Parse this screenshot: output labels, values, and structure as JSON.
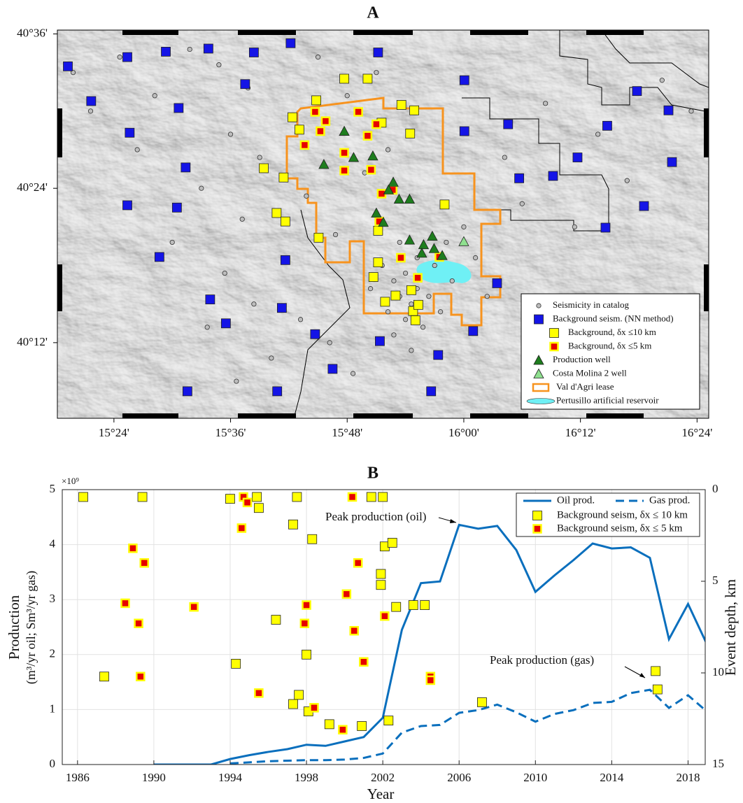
{
  "chart_data": [
    {
      "type": "map",
      "title": "A",
      "xlim": [
        15.303,
        16.42
      ],
      "ylim": [
        40.102,
        40.605
      ],
      "xticks": [
        {
          "value": 15.4,
          "label": "15°24'"
        },
        {
          "value": 15.6,
          "label": "15°36'"
        },
        {
          "value": 15.8,
          "label": "15°48'"
        },
        {
          "value": 16.0,
          "label": "16°00'"
        },
        {
          "value": 16.2,
          "label": "16°12'"
        },
        {
          "value": 16.4,
          "label": "16°24'"
        }
      ],
      "yticks": [
        {
          "value": 40.2,
          "label": "40°12'"
        },
        {
          "value": 40.4,
          "label": "40°24'"
        },
        {
          "value": 40.6,
          "label": "40°36'"
        }
      ],
      "legend": "lower right",
      "series": [
        {
          "name": "Seismicity in catalog",
          "color": "#bdbdbd",
          "marker": "circle",
          "x": [
            15.33,
            15.36,
            15.41,
            15.44,
            15.47,
            15.5,
            15.53,
            15.55,
            15.56,
            15.58,
            15.59,
            15.6,
            15.61,
            15.62,
            15.63,
            15.64,
            15.65,
            15.67,
            15.69,
            15.71,
            15.72,
            15.73,
            15.75,
            15.77,
            15.78,
            15.8,
            15.81,
            15.83,
            15.84,
            15.85,
            15.86,
            15.87,
            15.87,
            15.88,
            15.88,
            15.89,
            15.89,
            15.9,
            15.9,
            15.91,
            15.91,
            15.92,
            15.92,
            15.93,
            15.94,
            15.95,
            15.96,
            15.97,
            15.98,
            16.0,
            16.02,
            16.04,
            16.07,
            16.1,
            16.14,
            16.19,
            16.23,
            16.28,
            16.34,
            16.39
          ],
          "y": [
            40.55,
            40.5,
            40.57,
            40.45,
            40.52,
            40.33,
            40.58,
            40.4,
            40.22,
            40.56,
            40.29,
            40.47,
            40.15,
            40.36,
            40.53,
            40.25,
            40.44,
            40.18,
            40.31,
            40.49,
            40.23,
            40.39,
            40.57,
            40.2,
            40.34,
            40.52,
            40.16,
            40.42,
            40.27,
            40.55,
            40.3,
            40.24,
            40.45,
            40.28,
            40.21,
            40.26,
            40.33,
            40.23,
            40.29,
            40.25,
            40.19,
            40.27,
            40.31,
            40.22,
            40.26,
            40.3,
            40.24,
            40.33,
            40.28,
            40.35,
            40.31,
            40.26,
            40.44,
            40.38,
            40.51,
            40.35,
            40.47,
            40.41,
            40.54,
            40.5
          ]
        },
        {
          "name": "Background seism. (NN method)",
          "color": "#1414e6",
          "marker": "square",
          "x": [
            15.321,
            15.423,
            15.489,
            15.562,
            15.64,
            15.703,
            15.853,
            16.001,
            16.297,
            16.351,
            16.357,
            16.195,
            16.153,
            16.246,
            16.076,
            16.001,
            16.095,
            15.423,
            15.508,
            15.478,
            15.694,
            15.565,
            15.592,
            15.745,
            15.856,
            15.956,
            15.775,
            15.68,
            15.526,
            15.944,
            16.057,
            16.243,
            16.309,
            15.361,
            15.427,
            15.523,
            15.511,
            15.625,
            16.016,
            15.688
          ],
          "y": [
            40.558,
            40.57,
            40.577,
            40.581,
            40.576,
            40.588,
            40.576,
            40.54,
            40.526,
            40.501,
            40.434,
            40.44,
            40.416,
            40.481,
            40.483,
            40.474,
            40.413,
            40.378,
            40.375,
            40.311,
            40.307,
            40.256,
            40.225,
            40.211,
            40.202,
            40.184,
            40.166,
            40.137,
            40.137,
            40.137,
            40.277,
            40.349,
            40.377,
            40.513,
            40.472,
            40.427,
            40.504,
            40.535,
            40.215,
            40.245
          ]
        },
        {
          "name": "Background, δx ≤10 km",
          "color": "#ffff00",
          "marker": "square",
          "x": [
            15.795,
            15.835,
            15.747,
            15.706,
            15.718,
            15.657,
            15.691,
            15.679,
            15.694,
            15.908,
            15.915,
            15.893,
            15.859,
            15.967,
            15.751,
            15.853,
            15.845,
            15.865,
            15.883,
            15.91,
            15.913,
            15.917,
            15.922,
            15.853
          ],
          "y": [
            40.542,
            40.542,
            40.514,
            40.492,
            40.476,
            40.426,
            40.414,
            40.368,
            40.357,
            40.471,
            40.501,
            40.508,
            40.485,
            40.379,
            40.336,
            40.304,
            40.285,
            40.253,
            40.261,
            40.268,
            40.241,
            40.229,
            40.249,
            40.345
          ]
        },
        {
          "name": "Background, δx ≤5 km",
          "color": "#e60000",
          "edgecolor": "#ffff00",
          "marker": "square-small",
          "x": [
            15.745,
            15.763,
            15.754,
            15.727,
            15.795,
            15.795,
            15.841,
            15.859,
            15.878,
            15.819,
            15.85,
            15.835,
            15.855,
            15.892,
            15.921,
            15.958
          ],
          "y": [
            40.499,
            40.487,
            40.474,
            40.456,
            40.446,
            40.423,
            40.424,
            40.393,
            40.398,
            40.499,
            40.483,
            40.468,
            40.357,
            40.31,
            40.284,
            40.311
          ]
        },
        {
          "name": "Production well",
          "color": "#1e7d1e",
          "marker": "triangle",
          "x": [
            15.795,
            15.811,
            15.844,
            15.76,
            15.879,
            15.871,
            15.889,
            15.907,
            15.85,
            15.862,
            15.907,
            15.946,
            15.931,
            15.949,
            15.928,
            15.963
          ],
          "y": [
            40.474,
            40.44,
            40.442,
            40.431,
            40.408,
            40.398,
            40.386,
            40.386,
            40.368,
            40.356,
            40.333,
            40.338,
            40.327,
            40.322,
            40.316,
            40.313
          ]
        },
        {
          "name": "Costa Molina 2 well",
          "color": "#8fe08f",
          "marker": "triangle",
          "x": [
            16.0
          ],
          "y": [
            40.331
          ]
        }
      ],
      "overlays": [
        {
          "name": "Val d'Agri lease",
          "color": "#f7931e"
        },
        {
          "name": "Pertusillo artificial reservoir",
          "color": "#6ff0f5"
        }
      ]
    },
    {
      "type": "line",
      "title": "B",
      "xlabel": "Year",
      "ylabel": [
        "Production",
        "(m³/yr oil; Sm³/yr gas)"
      ],
      "y_multiplier": "×10⁹",
      "y2label": "Event depth, km",
      "xlim": [
        1985.2,
        2018.9
      ],
      "ylim": [
        0,
        5
      ],
      "y2lim": [
        15,
        0
      ],
      "xticks": [
        1986,
        1990,
        1994,
        1998,
        2002,
        2006,
        2010,
        2014,
        2018
      ],
      "yticks": [
        0,
        1,
        2,
        3,
        4,
        5
      ],
      "y2ticks": [
        0,
        5,
        10,
        15
      ],
      "grid": true,
      "legend": "upper right",
      "annotations": [
        "Peak production (oil)",
        "Peak production (gas)"
      ],
      "series": [
        {
          "name": "Oil prod.",
          "color": "#0a6fbd",
          "style": "solid",
          "x": [
            1990,
            1991,
            1992,
            1993,
            1994,
            1995,
            1996,
            1997,
            1998,
            1999,
            2000,
            2001,
            2002,
            2003,
            2004,
            2005,
            2006,
            2007,
            2008,
            2009,
            2010,
            2011,
            2012,
            2013,
            2014,
            2015,
            2016,
            2017,
            2018,
            2019
          ],
          "values": [
            0,
            0,
            0,
            0,
            0.1,
            0.17,
            0.23,
            0.28,
            0.36,
            0.34,
            0.42,
            0.5,
            0.85,
            2.45,
            3.3,
            3.33,
            4.36,
            4.29,
            4.34,
            3.9,
            3.14,
            3.44,
            3.72,
            4.02,
            3.93,
            3.95,
            3.76,
            2.28,
            2.92,
            2.18
          ]
        },
        {
          "name": "Gas prod.",
          "color": "#0a6fbd",
          "style": "dashed",
          "x": [
            1994,
            1995,
            1996,
            1997,
            1998,
            1999,
            2000,
            2001,
            2002,
            2003,
            2004,
            2005,
            2006,
            2007,
            2008,
            2009,
            2010,
            2011,
            2012,
            2013,
            2014,
            2015,
            2016,
            2017,
            2018,
            2019
          ],
          "values": [
            0.02,
            0.04,
            0.06,
            0.07,
            0.08,
            0.08,
            0.09,
            0.12,
            0.2,
            0.58,
            0.7,
            0.72,
            0.94,
            0.99,
            1.09,
            0.95,
            0.78,
            0.92,
            0.99,
            1.12,
            1.14,
            1.3,
            1.36,
            1.03,
            1.26,
            0.96
          ]
        },
        {
          "name": "Background seism, δx ≤ 10 km",
          "type": "scatter",
          "axis": "y2",
          "color": "#ffff00",
          "marker": "square",
          "x": [
            1986.3,
            1989.4,
            1994.0,
            1995.4,
            1995.5,
            1997.5,
            2001.4,
            2002.0,
            1997.3,
            1998.3,
            2002.1,
            2002.5,
            2001.9,
            2001.9,
            2002.7,
            2003.6,
            2004.2,
            1996.4,
            1987.4,
            1994.3,
            1998.0,
            1997.6,
            1997.3,
            1998.1,
            1999.2,
            2000.9,
            2002.3,
            2007.2,
            2016.3,
            2016.4
          ],
          "values": [
            0.4,
            0.4,
            0.5,
            0.4,
            1.0,
            0.4,
            0.4,
            0.4,
            1.9,
            2.7,
            3.1,
            2.9,
            4.6,
            5.2,
            6.4,
            6.3,
            6.3,
            7.1,
            10.2,
            9.5,
            9.0,
            11.2,
            11.7,
            12.1,
            12.8,
            12.9,
            12.6,
            11.6,
            9.9,
            10.9
          ]
        },
        {
          "name": "Background seism, δx ≤ 5 km",
          "type": "scatter",
          "axis": "y2",
          "color": "#e60000",
          "edgecolor": "#ffff00",
          "marker": "square-small",
          "x": [
            2000.4,
            1994.7,
            1994.9,
            1994.6,
            1988.9,
            1989.5,
            1988.5,
            1992.1,
            1998.0,
            1997.9,
            2000.7,
            2000.1,
            2002.1,
            1989.2,
            2000.5,
            2001.0,
            1989.3,
            1995.5,
            1998.4,
            1999.9,
            2004.5,
            2004.5
          ],
          "values": [
            0.4,
            0.4,
            0.7,
            2.1,
            3.2,
            4.0,
            6.2,
            6.4,
            6.3,
            7.3,
            4.0,
            5.7,
            6.9,
            7.3,
            7.7,
            9.4,
            10.2,
            11.1,
            11.9,
            13.1,
            10.2,
            10.4
          ]
        }
      ]
    }
  ]
}
